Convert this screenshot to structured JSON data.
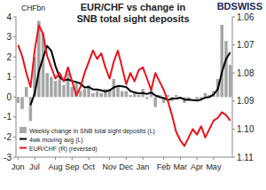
{
  "chart_data": {
    "type": "bar",
    "title": "EUR/CHF vs change in SNB total sight deposits",
    "logo": "BDSWISS",
    "ylabel": "CHFbn",
    "categories": [
      "Jun",
      null,
      null,
      null,
      "Jul",
      null,
      null,
      null,
      null,
      "Aug",
      null,
      null,
      null,
      "Sep",
      null,
      null,
      null,
      "Oct",
      null,
      null,
      null,
      null,
      "Nov",
      null,
      null,
      null,
      "Dec",
      null,
      null,
      null,
      "Jan",
      null,
      null,
      null,
      null,
      "Feb",
      null,
      null,
      null,
      "Mar",
      null,
      null,
      null,
      "Apr",
      null,
      null,
      null,
      "May",
      null,
      null,
      null,
      null
    ],
    "series": [
      {
        "name": "Weekly change in SNB total sight deposits (L)",
        "type": "bar",
        "color": "#a6a6a6",
        "values": [
          -0.3,
          -0.6,
          0.5,
          -1.2,
          2.0,
          3.8,
          3.2,
          1.2,
          1.0,
          0.8,
          0.9,
          0.6,
          1.2,
          0.5,
          0.7,
          0.3,
          0.4,
          0.6,
          0.2,
          0.3,
          0.2,
          0.4,
          0.4,
          0.9,
          0.5,
          0.3,
          0.3,
          0.1,
          0.2,
          0.1,
          0.4,
          -0.1,
          0.5,
          -0.5,
          0.1,
          -0.3,
          0.1,
          -0.2,
          0.1,
          -0.1,
          -0.3,
          -0.2,
          0.0,
          -0.2,
          -0.1,
          0.2,
          0.1,
          0.3,
          0.9,
          3.6,
          2.8,
          1.6
        ]
      },
      {
        "name": "4wk moving avg (L)",
        "type": "line",
        "color": "#000000",
        "values": [
          null,
          null,
          null,
          -0.4,
          0.18,
          1.28,
          1.95,
          2.55,
          2.3,
          1.55,
          0.98,
          0.83,
          0.88,
          0.8,
          0.75,
          0.68,
          0.48,
          0.5,
          0.38,
          0.38,
          0.33,
          0.28,
          0.33,
          0.48,
          0.55,
          0.53,
          0.5,
          0.3,
          0.23,
          0.18,
          0.2,
          0.15,
          0.23,
          0.08,
          0.0,
          -0.05,
          -0.15,
          -0.08,
          -0.08,
          -0.03,
          -0.13,
          -0.13,
          -0.15,
          -0.18,
          -0.13,
          -0.03,
          0.0,
          0.13,
          0.38,
          1.23,
          1.9,
          2.23
        ]
      },
      {
        "name": "EUR/CHF (R) (reversed)",
        "type": "line",
        "color": "#e8131b",
        "axis": "y2",
        "values": [
          1.07,
          1.074,
          1.08,
          1.085,
          1.072,
          1.063,
          1.066,
          1.074,
          1.078,
          1.082,
          1.08,
          1.083,
          1.078,
          1.083,
          1.088,
          1.085,
          1.08,
          1.076,
          1.072,
          1.075,
          1.073,
          1.078,
          1.082,
          1.076,
          1.072,
          1.078,
          1.084,
          1.08,
          1.083,
          1.079,
          1.078,
          1.082,
          1.086,
          1.08,
          1.083,
          1.086,
          1.09,
          1.095,
          1.101,
          1.104,
          1.106,
          1.103,
          1.1,
          1.102,
          1.099,
          1.103,
          1.1,
          1.097,
          1.096,
          1.094,
          1.095,
          1.097
        ]
      }
    ],
    "ylim": [
      -3,
      4
    ],
    "yticks": [
      -3,
      -2,
      -1,
      0,
      1,
      2,
      3,
      4
    ],
    "y2lim": [
      1.11,
      1.06
    ],
    "y2ticks": [
      1.06,
      1.07,
      1.08,
      1.09,
      {
        "value": 1.1,
        "label": "1.10"
      },
      1.11
    ],
    "grid": false,
    "legend": "bottom-left"
  }
}
